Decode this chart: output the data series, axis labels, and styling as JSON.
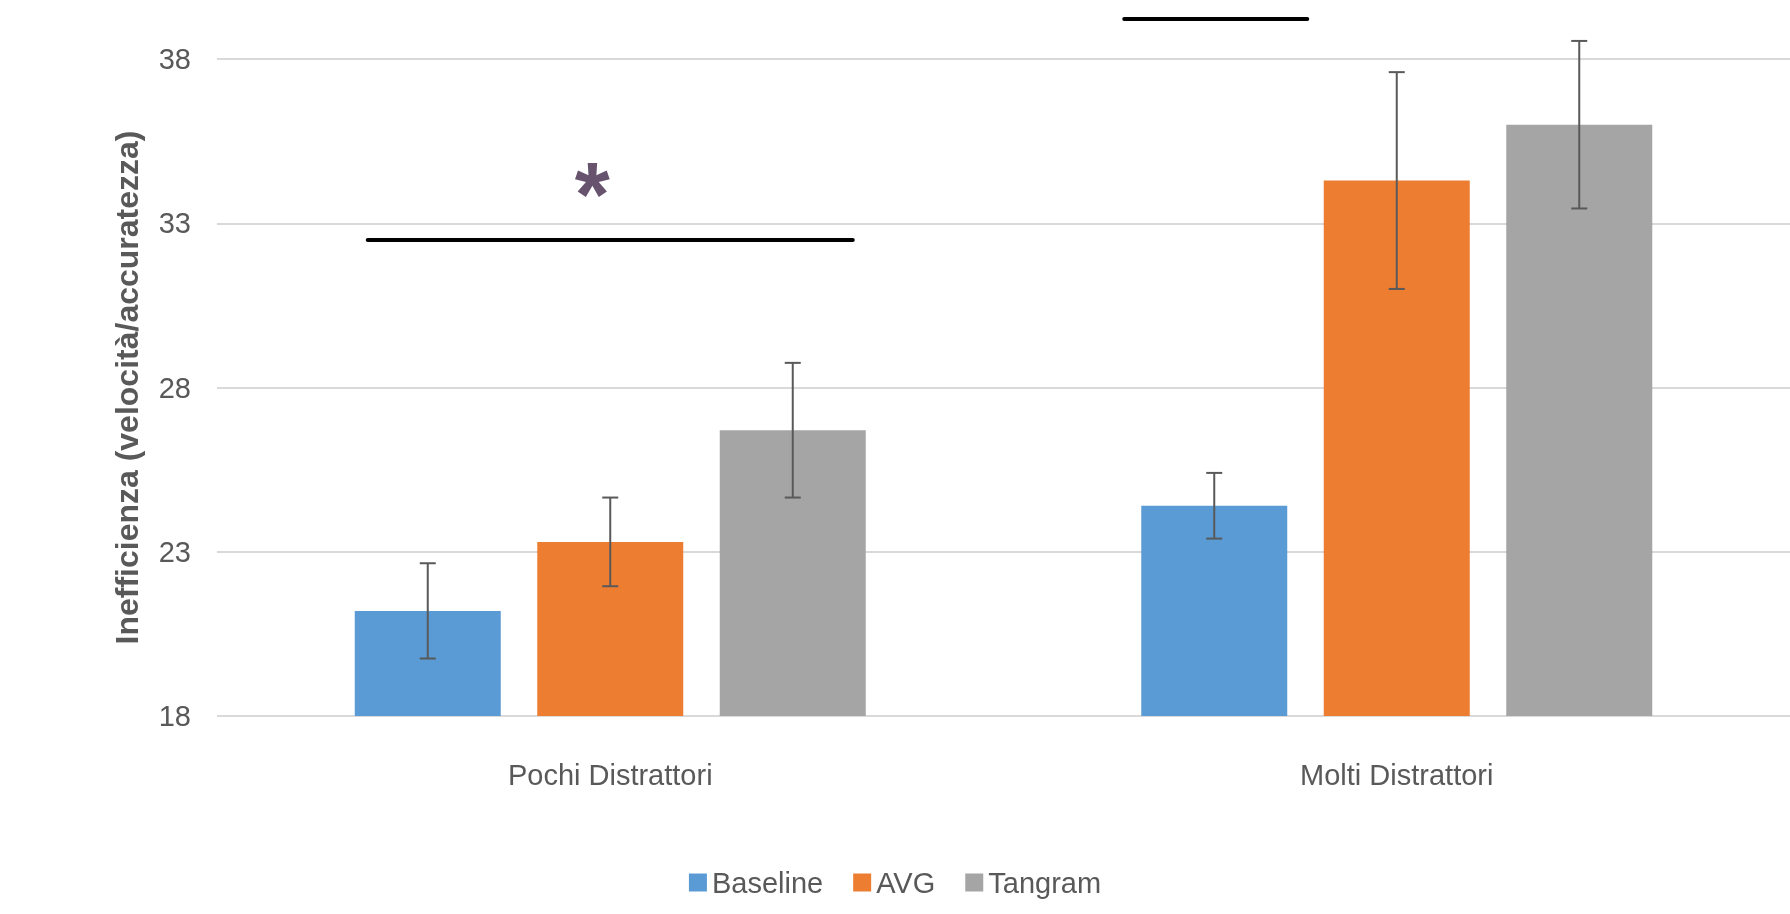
{
  "chart_data": {
    "type": "bar",
    "ylabel": "Inefficienza (velocità/accuratezza)",
    "categories": [
      "Pochi Distrattori",
      "Molti Distrattori"
    ],
    "series": [
      {
        "name": "Baseline",
        "color": "#5b9bd5",
        "values": [
          21.2,
          24.4
        ],
        "errors": [
          1.45,
          1.0
        ]
      },
      {
        "name": "AVG",
        "color": "#ed7d31",
        "values": [
          23.3,
          34.3
        ],
        "errors": [
          1.35,
          3.3
        ]
      },
      {
        "name": "Tangram",
        "color": "#a5a5a5",
        "values": [
          26.7,
          36.0
        ],
        "errors": [
          2.05,
          2.55
        ]
      }
    ],
    "ylim": [
      18,
      38
    ],
    "yticks": [
      18,
      23,
      28,
      33,
      38
    ],
    "grid": "y",
    "legend": "bottom",
    "annotations": [
      "*"
    ]
  }
}
